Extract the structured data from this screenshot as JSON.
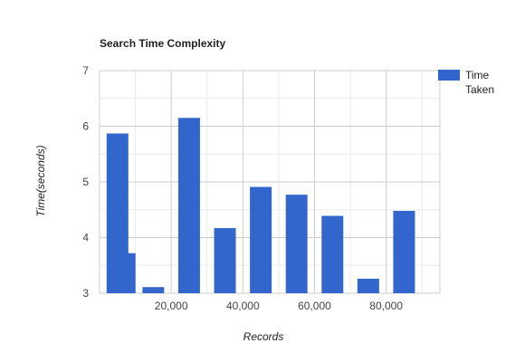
{
  "chart_data": {
    "type": "bar",
    "title": "Search Time Complexity",
    "xlabel": "Records",
    "ylabel": "Time(seconds)",
    "xlim": [
      0,
      95000
    ],
    "ylim": [
      3,
      7
    ],
    "x_ticks": [
      20000,
      40000,
      60000,
      80000
    ],
    "x_tick_labels": [
      "20,000",
      "40,000",
      "60,000",
      "80,000"
    ],
    "y_ticks": [
      3,
      4,
      5,
      6,
      7
    ],
    "y_tick_labels": [
      "3",
      "4",
      "5",
      "6",
      "7"
    ],
    "grid": true,
    "legend_position": "right",
    "series": [
      {
        "name": "Time Taken",
        "color": "#3366cc",
        "x": [
          5000,
          7000,
          15000,
          25000,
          35000,
          45000,
          55000,
          65000,
          75000,
          85000
        ],
        "values": [
          5.87,
          3.72,
          3.11,
          6.15,
          4.17,
          4.91,
          4.77,
          4.39,
          3.26,
          4.48
        ]
      }
    ]
  }
}
